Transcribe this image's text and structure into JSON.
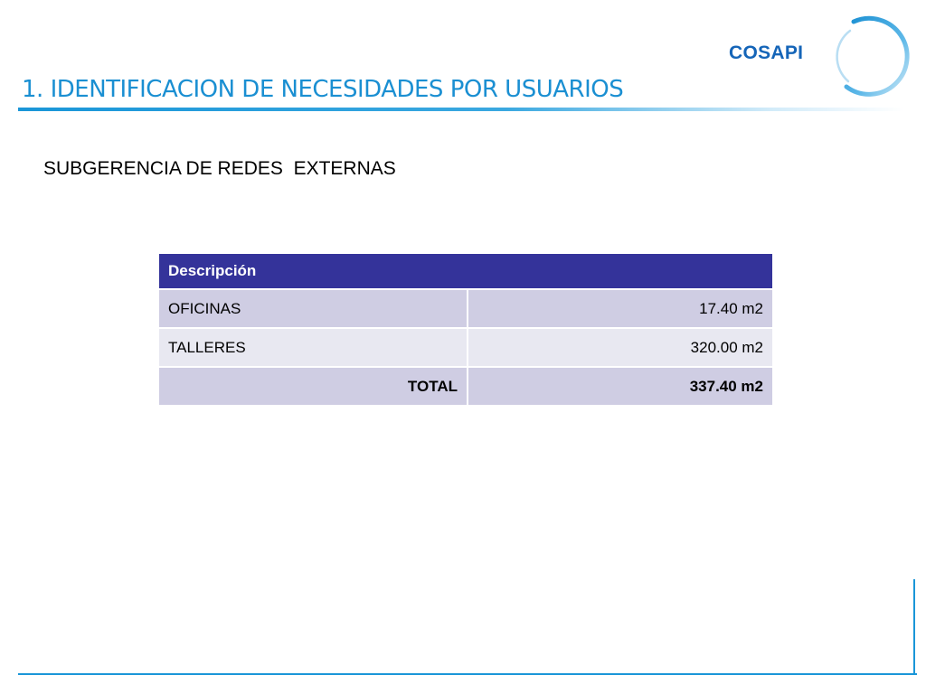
{
  "header": {
    "title": "1. IDENTIFICACION DE NECESIDADES POR USUARIOS",
    "logo_text": "COSAPI"
  },
  "content": {
    "subtitle": "SUBGERENCIA DE REDES  EXTERNAS"
  },
  "table": {
    "header": "Descripción",
    "rows": [
      {
        "label": "OFICINAS",
        "value": "17.40 m2"
      },
      {
        "label": "TALLERES",
        "value": "320.00 m2"
      }
    ],
    "total": {
      "label": "TOTAL",
      "value": "337.40 m2"
    }
  },
  "colors": {
    "accent": "#1a8fd2",
    "table_header": "#34339a",
    "row_dark": "#cfcde3",
    "row_light": "#e8e8f1",
    "logo": "#1565b8"
  }
}
